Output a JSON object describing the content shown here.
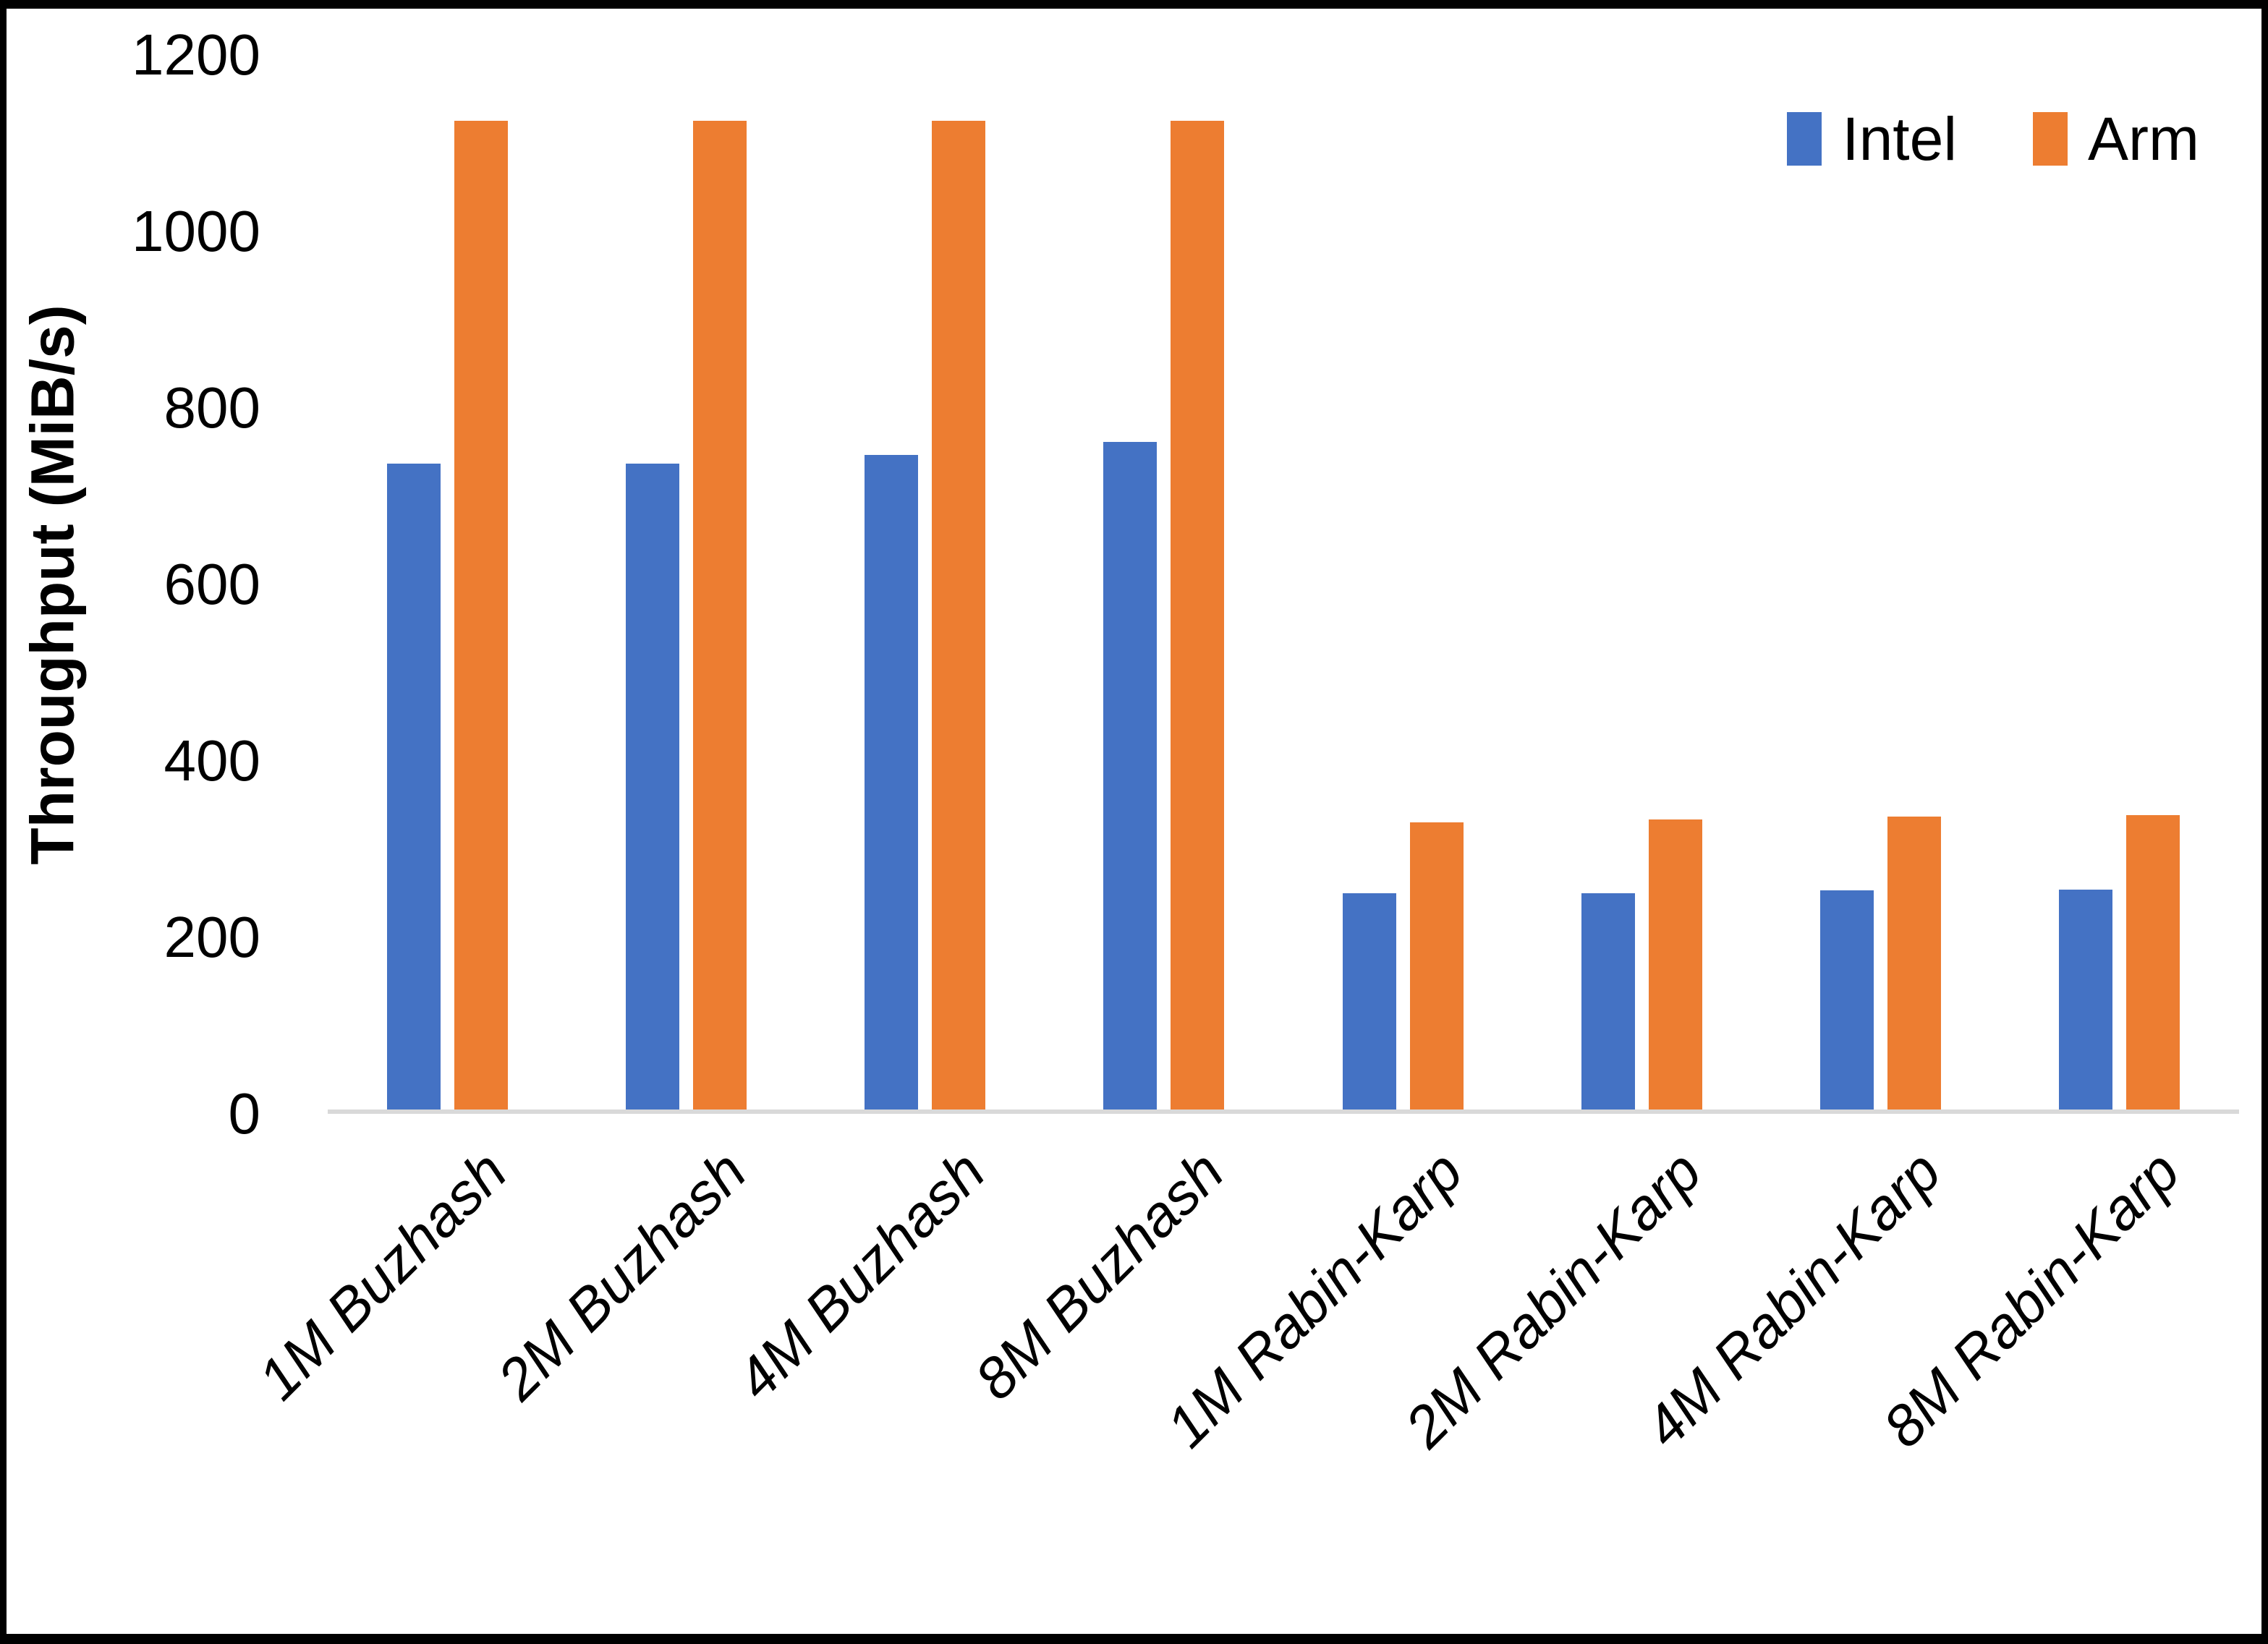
{
  "frame": {
    "background": "#ffffff",
    "border_color": "#000000"
  },
  "chart_data": {
    "type": "bar",
    "title": "",
    "categories": [
      "1M Buzhash",
      "2M Buzhash",
      "4M Buzhash",
      "8M Buzhash",
      "1M Rabin-Karp",
      "2M Rabin-Karp",
      "4M Rabin-Karp",
      "8M Rabin-Karp"
    ],
    "series": [
      {
        "name": "Intel",
        "color": "#4472C4",
        "values": [
          735,
          735,
          745,
          760,
          246,
          246,
          249,
          250
        ]
      },
      {
        "name": "Arm",
        "color": "#ED7D31",
        "values": [
          1125,
          1125,
          1125,
          1125,
          327,
          330,
          333,
          335
        ]
      }
    ],
    "xlabel": "",
    "ylabel": "Throughput (MiB/s)",
    "ylim": [
      0,
      1200
    ],
    "yticks": [
      0,
      200,
      400,
      600,
      800,
      1000,
      1200
    ],
    "grid": "none",
    "legend_position": "top-right",
    "axis_line_color": "#D9D9D9"
  }
}
